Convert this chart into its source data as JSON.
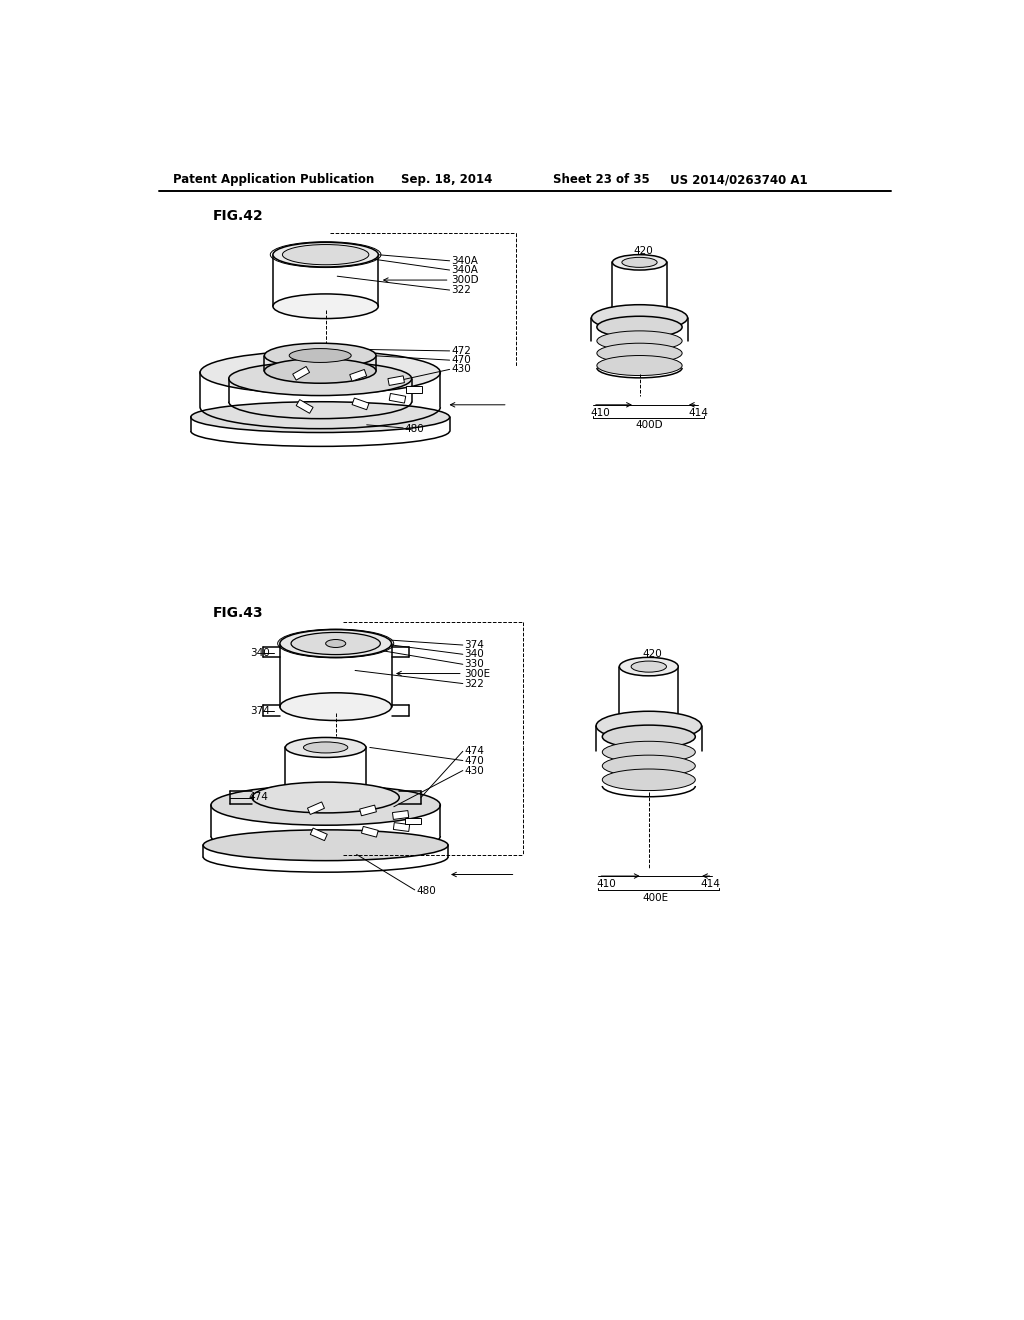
{
  "background_color": "#ffffff",
  "header_text": "Patent Application Publication",
  "header_date": "Sep. 18, 2014",
  "header_sheet": "Sheet 23 of 35",
  "header_patent": "US 2014/0263740 A1",
  "fig42_label": "FIG.42",
  "fig43_label": "FIG.43",
  "line_color": "#000000",
  "label_color": "#000000",
  "font_size_header": 8.5,
  "font_size_fig": 10,
  "font_size_label": 7.5
}
